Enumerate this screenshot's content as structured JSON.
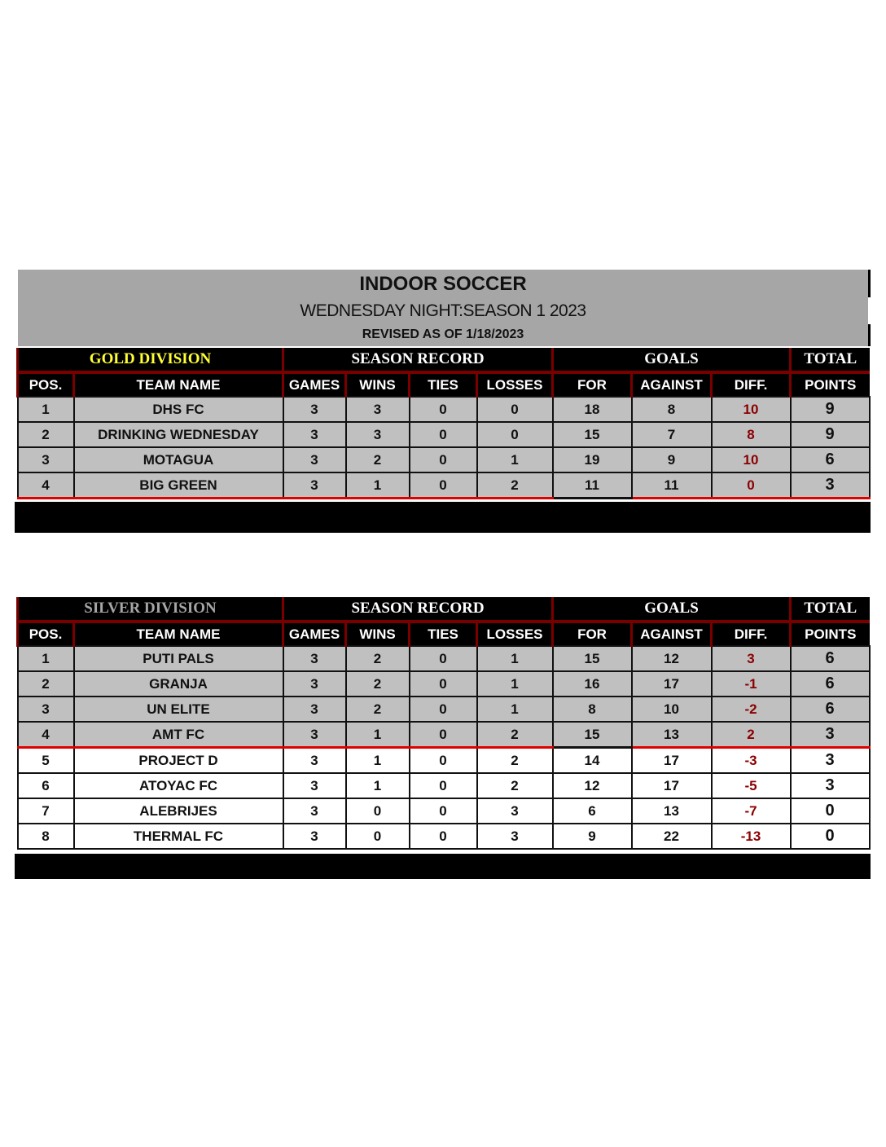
{
  "header": {
    "title": "INDOOR SOCCER",
    "subtitle": "WEDNESDAY NIGHT:SEASON 1 2023",
    "revised": "REVISED AS OF 1/18/2023"
  },
  "columns": {
    "group_record": "SEASON RECORD",
    "group_goals": "GOALS",
    "group_total": "TOTAL",
    "pos": "POS.",
    "team": "TEAM NAME",
    "games": "GAMES",
    "wins": "WINS",
    "ties": "TIES",
    "losses": "LOSSES",
    "for": "FOR",
    "against": "AGAINST",
    "diff": "DIFF.",
    "points": "POINTS"
  },
  "colors": {
    "gold_label": "#ffff33",
    "silver_label": "#a6a6a6",
    "diff_text": "#8b0000",
    "cutoff_line": "#e00000",
    "accent_border": "#7a0000"
  },
  "gold": {
    "label": "GOLD DIVISION",
    "rows": [
      [
        "1",
        "DHS FC",
        "3",
        "3",
        "0",
        "0",
        "18",
        "8",
        "10",
        "9"
      ],
      [
        "2",
        "DRINKING WEDNESDAY",
        "3",
        "3",
        "0",
        "0",
        "15",
        "7",
        "8",
        "9"
      ],
      [
        "3",
        "MOTAGUA",
        "3",
        "2",
        "0",
        "1",
        "19",
        "9",
        "10",
        "6"
      ],
      [
        "4",
        "BIG GREEN",
        "3",
        "1",
        "0",
        "2",
        "11",
        "11",
        "0",
        "3"
      ]
    ]
  },
  "silver": {
    "label": "SILVER DIVISION",
    "rows": [
      [
        "1",
        "PUTI PALS",
        "3",
        "2",
        "0",
        "1",
        "15",
        "12",
        "3",
        "6"
      ],
      [
        "2",
        "GRANJA",
        "3",
        "2",
        "0",
        "1",
        "16",
        "17",
        "-1",
        "6"
      ],
      [
        "3",
        "UN ELITE",
        "3",
        "2",
        "0",
        "1",
        "8",
        "10",
        "-2",
        "6"
      ],
      [
        "4",
        "AMT FC",
        "3",
        "1",
        "0",
        "2",
        "15",
        "13",
        "2",
        "3"
      ],
      [
        "5",
        "PROJECT D",
        "3",
        "1",
        "0",
        "2",
        "14",
        "17",
        "-3",
        "3"
      ],
      [
        "6",
        "ATOYAC FC",
        "3",
        "1",
        "0",
        "2",
        "12",
        "17",
        "-5",
        "3"
      ],
      [
        "7",
        "ALEBRIJES",
        "3",
        "0",
        "0",
        "3",
        "6",
        "13",
        "-7",
        "0"
      ],
      [
        "8",
        "THERMAL FC",
        "3",
        "0",
        "0",
        "3",
        "9",
        "22",
        "-13",
        "0"
      ]
    ]
  }
}
